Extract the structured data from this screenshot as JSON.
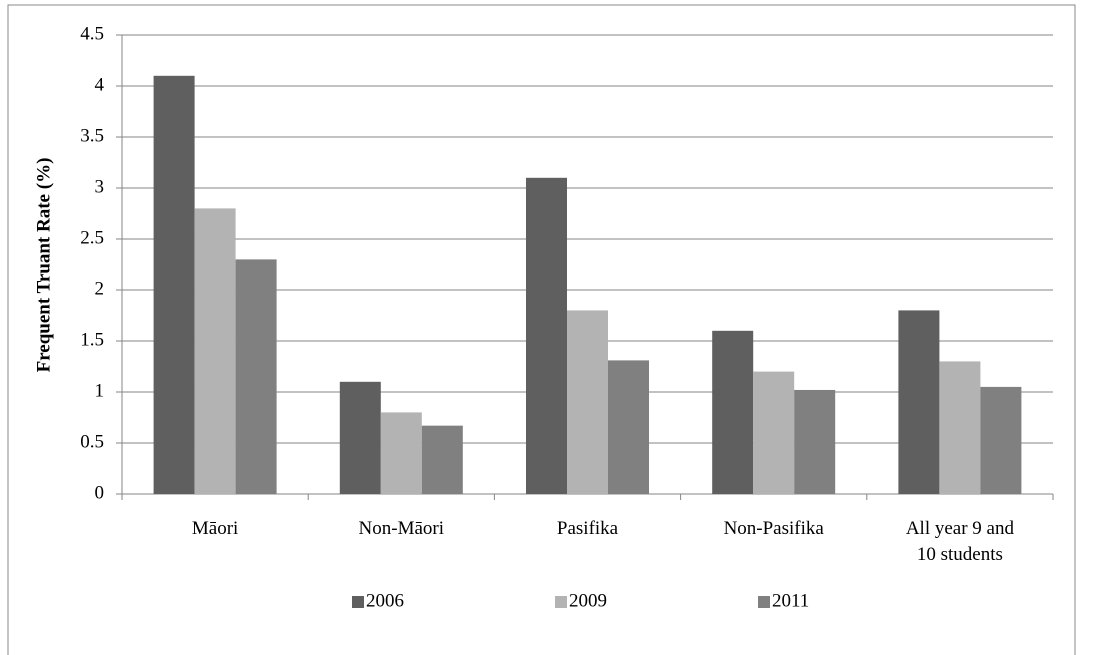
{
  "chart_data": {
    "type": "bar",
    "y_label": "Frequent Truant Rate (%)",
    "categories": [
      "Māori",
      "Non-Māori",
      "Pasifika",
      "Non-Pasifika",
      "All year 9 and 10 students"
    ],
    "series": [
      {
        "name": "2006",
        "color": "#5f5f5f",
        "values": [
          4.1,
          1.1,
          3.1,
          1.6,
          1.8
        ]
      },
      {
        "name": "2009",
        "color": "#b3b3b3",
        "values": [
          2.8,
          0.8,
          1.8,
          1.2,
          1.3
        ]
      },
      {
        "name": "2011",
        "color": "#808080",
        "values": [
          2.3,
          0.67,
          1.31,
          1.02,
          1.05
        ]
      }
    ],
    "ylim": [
      0,
      4.5
    ],
    "yticks": [
      0,
      0.5,
      1,
      1.5,
      2,
      2.5,
      3,
      3.5,
      4,
      4.5
    ],
    "grid": true,
    "legend": "bottom"
  }
}
